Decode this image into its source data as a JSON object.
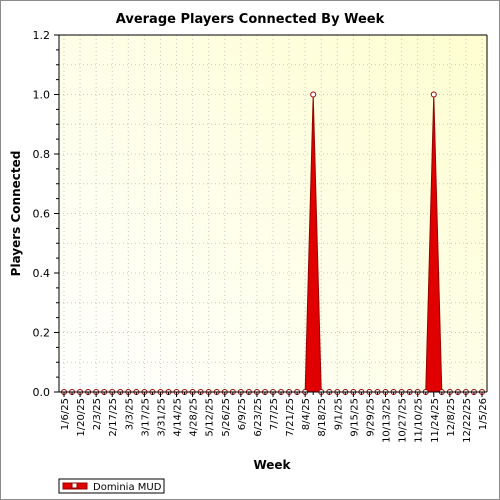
{
  "chart_data": {
    "type": "area",
    "title": "Average Players Connected By Week",
    "xlabel": "Week",
    "ylabel": "Players Connected",
    "ylim": [
      0,
      1.2
    ],
    "yticks": [
      "0.0",
      "0.2",
      "0.4",
      "0.6",
      "0.8",
      "1.0",
      "1.2"
    ],
    "x_tick_labels": [
      "1/6/25",
      "1/20/25",
      "2/3/25",
      "2/17/25",
      "3/3/25",
      "3/17/25",
      "3/31/25",
      "4/14/25",
      "4/28/25",
      "5/12/25",
      "5/26/25",
      "6/9/25",
      "6/23/25",
      "7/7/25",
      "7/21/25",
      "8/4/25",
      "8/18/25",
      "9/1/25",
      "9/15/25",
      "9/29/25",
      "10/13/25",
      "10/27/25",
      "11/10/25",
      "11/24/25",
      "12/8/25",
      "12/22/25",
      "1/5/26"
    ],
    "grid": true,
    "legend_position": "bottom-left",
    "colors": {
      "series": "#e00000",
      "series_edge": "#990000",
      "plot_bg_light": "#ffffff",
      "plot_bg_dark": "#fefed0",
      "grid": "#c8c8c8"
    },
    "series": [
      {
        "name": "Dominia MUD",
        "x": [
          "1/6/25",
          "1/13/25",
          "1/20/25",
          "1/27/25",
          "2/3/25",
          "2/10/25",
          "2/17/25",
          "2/24/25",
          "3/3/25",
          "3/10/25",
          "3/17/25",
          "3/24/25",
          "3/31/25",
          "4/7/25",
          "4/14/25",
          "4/21/25",
          "4/28/25",
          "5/5/25",
          "5/12/25",
          "5/19/25",
          "5/26/25",
          "6/2/25",
          "6/9/25",
          "6/16/25",
          "6/23/25",
          "6/30/25",
          "7/7/25",
          "7/14/25",
          "7/21/25",
          "7/28/25",
          "8/4/25",
          "8/11/25",
          "8/18/25",
          "8/25/25",
          "9/1/25",
          "9/8/25",
          "9/15/25",
          "9/22/25",
          "9/29/25",
          "10/6/25",
          "10/13/25",
          "10/20/25",
          "10/27/25",
          "11/3/25",
          "11/10/25",
          "11/17/25",
          "11/24/25",
          "12/1/25",
          "12/8/25",
          "12/15/25",
          "12/22/25",
          "12/29/25",
          "1/5/26"
        ],
        "values": [
          0,
          0,
          0,
          0,
          0,
          0,
          0,
          0,
          0,
          0,
          0,
          0,
          0,
          0,
          0,
          0,
          0,
          0,
          0,
          0,
          0,
          0,
          0,
          0,
          0,
          0,
          0,
          0,
          0,
          0,
          0,
          1,
          0,
          0,
          0,
          0,
          0,
          0,
          0,
          0,
          0,
          0,
          0,
          0,
          0,
          0,
          1,
          0,
          0,
          0,
          0,
          0,
          0
        ]
      }
    ]
  }
}
